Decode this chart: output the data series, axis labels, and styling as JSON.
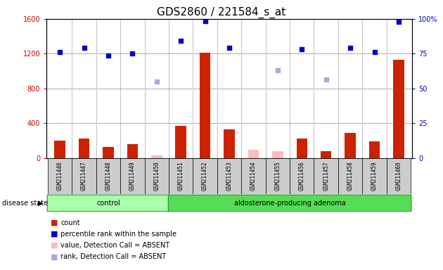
{
  "title": "GDS2860 / 221584_s_at",
  "samples": [
    "GSM211446",
    "GSM211447",
    "GSM211448",
    "GSM211449",
    "GSM211450",
    "GSM211451",
    "GSM211452",
    "GSM211453",
    "GSM211454",
    "GSM211455",
    "GSM211456",
    "GSM211457",
    "GSM211458",
    "GSM211459",
    "GSM211460"
  ],
  "count_values": [
    200,
    220,
    130,
    160,
    null,
    370,
    1210,
    330,
    null,
    null,
    220,
    80,
    290,
    190,
    1130
  ],
  "count_absent": [
    null,
    null,
    null,
    null,
    30,
    null,
    null,
    null,
    95,
    75,
    null,
    null,
    null,
    null,
    null
  ],
  "pct_present": [
    1220,
    1265,
    1175,
    1200,
    null,
    1350,
    1575,
    1265,
    null,
    null,
    1250,
    null,
    1270,
    1220,
    1570
  ],
  "pct_absent": [
    null,
    null,
    null,
    null,
    875,
    null,
    null,
    null,
    null,
    1010,
    null,
    900,
    null,
    null,
    null
  ],
  "ylim_left": [
    0,
    1600
  ],
  "ylim_right": [
    0,
    100
  ],
  "yticks_left": [
    0,
    400,
    800,
    1200,
    1600
  ],
  "yticks_right": [
    0,
    25,
    50,
    75,
    100
  ],
  "control_indices": [
    0,
    1,
    2,
    3,
    4
  ],
  "adenoma_indices": [
    5,
    6,
    7,
    8,
    9,
    10,
    11,
    12,
    13,
    14
  ],
  "left_tick_color": "#cc0000",
  "right_tick_color": "#0000cc",
  "bar_color": "#cc2200",
  "bar_absent_color": "#ffbbbb",
  "dot_color": "#0000cc",
  "dot_absent_color": "#aaaadd",
  "grid_color": "#000000",
  "col_bg_color": "#cccccc",
  "control_fill": "#aaffaa",
  "adenoma_fill": "#55dd55",
  "title_fontsize": 11,
  "tick_fontsize": 7,
  "annot_fontsize": 7,
  "legend_fontsize": 7
}
